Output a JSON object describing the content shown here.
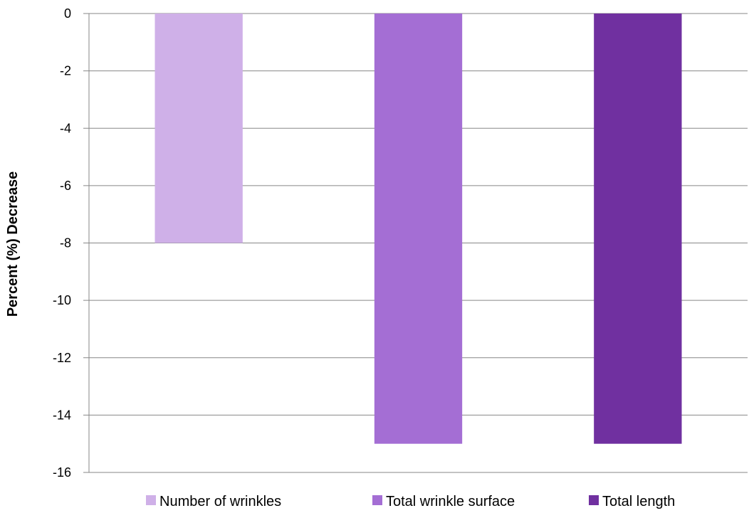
{
  "chart_data": {
    "type": "bar",
    "title": "",
    "xlabel": "",
    "ylabel": "Percent (%) Decrease",
    "ylim": [
      -16,
      0
    ],
    "yticks": [
      0,
      -2,
      -4,
      -6,
      -8,
      -10,
      -12,
      -14,
      -16
    ],
    "ytick_labels": [
      "0",
      "-2",
      "-4",
      "-6",
      "-8",
      "-10",
      "-12",
      "-14",
      "-16"
    ],
    "grid": true,
    "legend_position": "bottom",
    "series": [
      {
        "name": "Number of wrinkles",
        "value": -8,
        "color": "#cfb0e8"
      },
      {
        "name": "Total wrinkle surface",
        "value": -15,
        "color": "#a46ed4"
      },
      {
        "name": "Total length",
        "value": -15,
        "color": "#7030a0"
      }
    ]
  }
}
